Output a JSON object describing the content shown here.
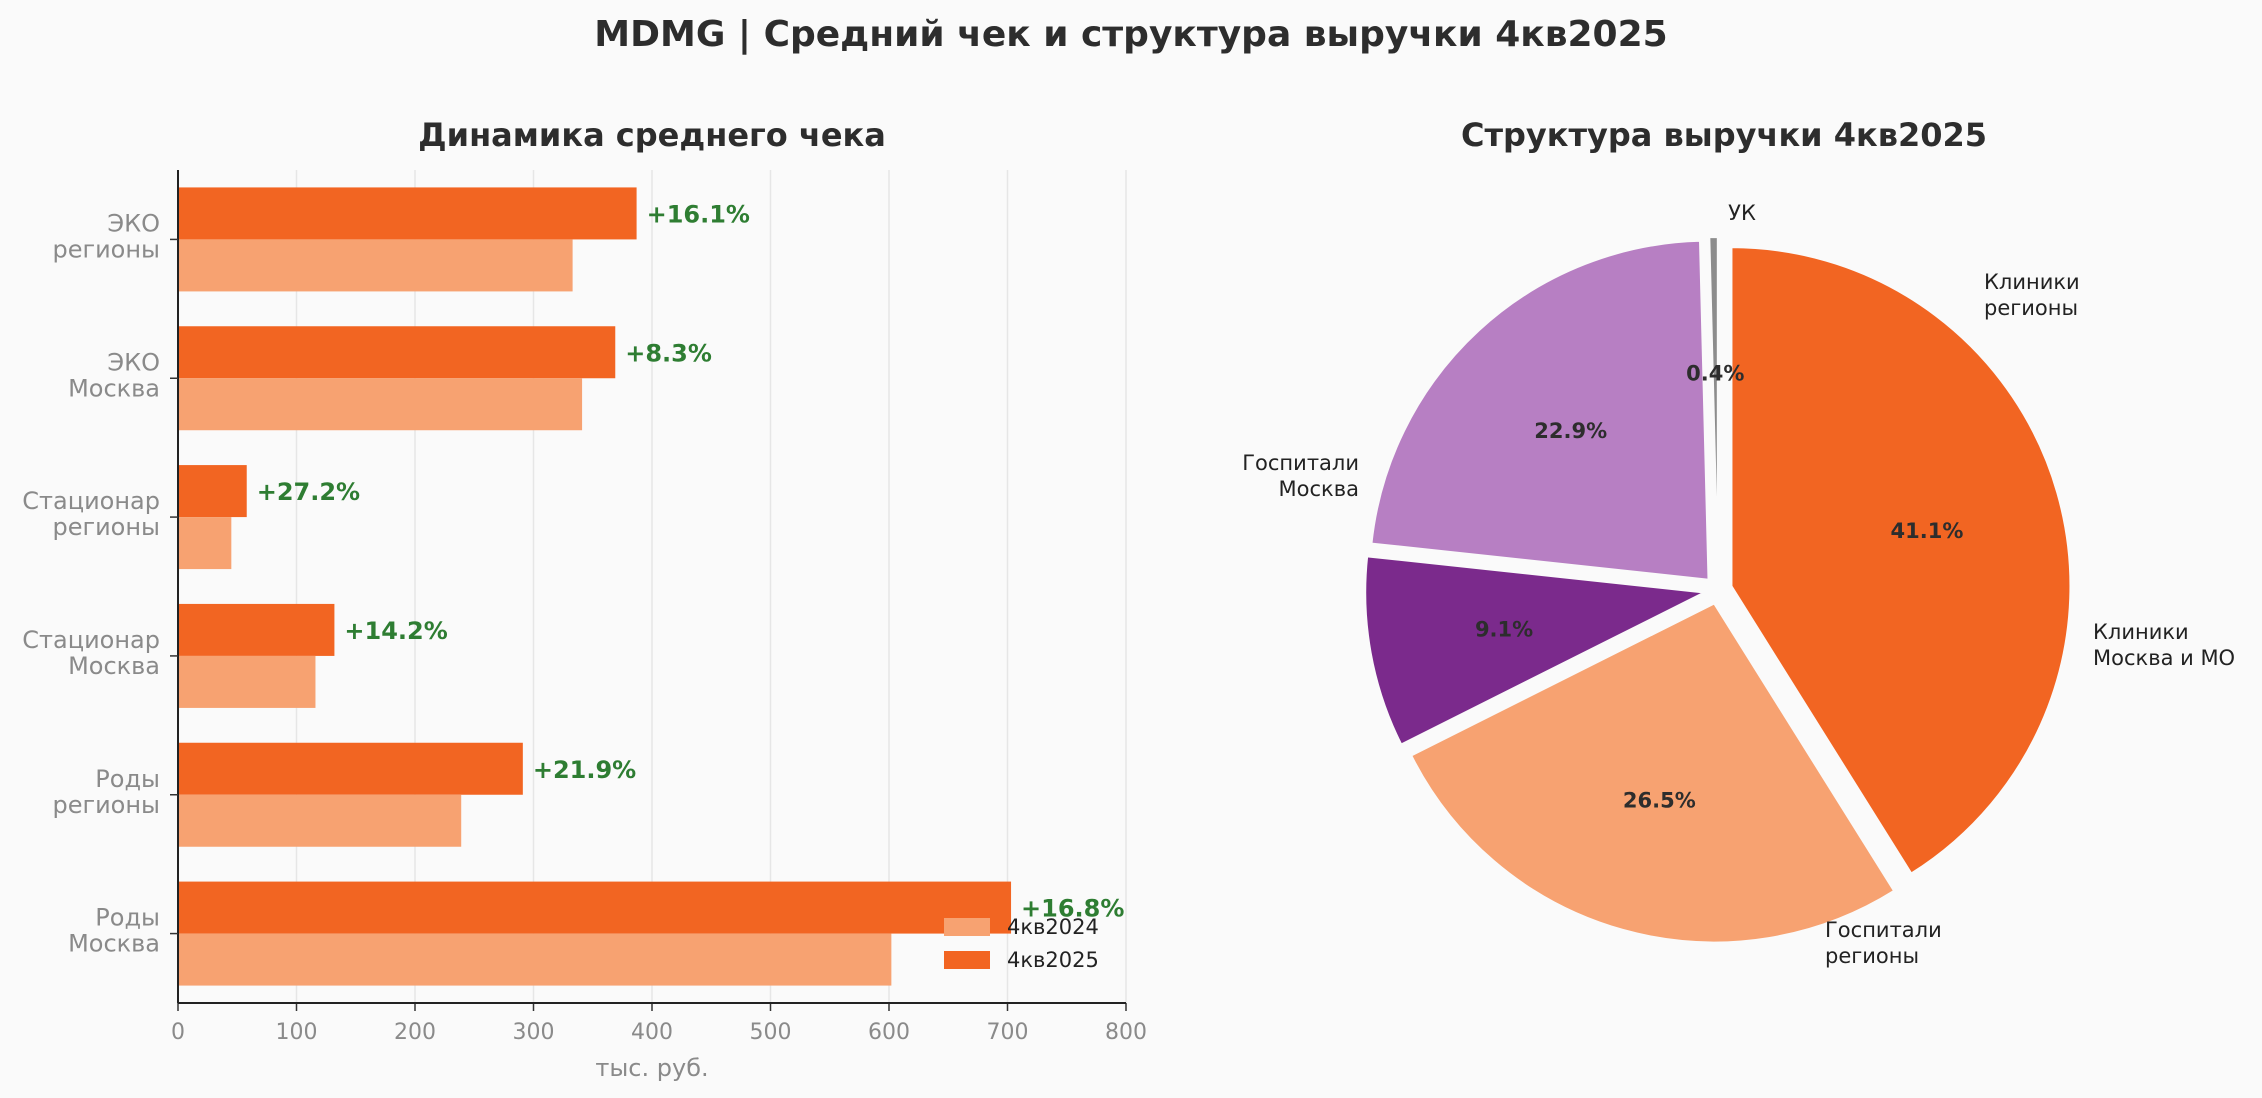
{
  "title": "MDMG | Средний чек и структура выручки 4кв2025",
  "chart_data": [
    {
      "type": "bar",
      "orientation": "horizontal",
      "title": "Динамика среднего чека",
      "xlabel": "тыс. руб.",
      "xlim": [
        0,
        800
      ],
      "xticks": [
        0,
        100,
        200,
        300,
        400,
        500,
        600,
        700,
        800
      ],
      "grid": true,
      "legend_position": "bottom-right",
      "categories": [
        [
          "ЭКО",
          "регионы"
        ],
        [
          "ЭКО",
          "Москва"
        ],
        [
          "Стационар",
          "регионы"
        ],
        [
          "Стационар",
          "Москва"
        ],
        [
          "Роды",
          "регионы"
        ],
        [
          "Роды",
          "Москва"
        ]
      ],
      "series": [
        {
          "name": "4кв2024",
          "color": "#f7a271",
          "values": [
            333,
            341,
            45,
            116,
            239,
            602
          ]
        },
        {
          "name": "4кв2025",
          "color": "#f26522",
          "values": [
            387,
            369,
            58,
            132,
            291,
            703
          ]
        }
      ],
      "changes": [
        "+16.1%",
        "+8.3%",
        "+27.2%",
        "+14.2%",
        "+21.9%",
        "+16.8%"
      ],
      "change_color": "#2e7d32"
    },
    {
      "type": "pie",
      "title": "Структура выручки 4кв2025",
      "slices": [
        {
          "label": [
            "УК"
          ],
          "pct_label": "0.4%",
          "value": 0.4,
          "color": "#8c8c8c"
        },
        {
          "label": [
            "Клиники",
            "регионы"
          ],
          "pct_label": "22.9%",
          "value": 22.9,
          "color": "#b77fc3"
        },
        {
          "label": [
            "Клиники",
            "Москва и МО"
          ],
          "pct_label": "9.1%",
          "value": 9.1,
          "color": "#7b2a8c"
        },
        {
          "label": [
            "Госпитали",
            "регионы"
          ],
          "pct_label": "26.5%",
          "value": 26.5,
          "color": "#f7a271"
        },
        {
          "label": [
            "Госпитали",
            "Москва"
          ],
          "pct_label": "41.1%",
          "value": 41.1,
          "color": "#f26522"
        }
      ]
    }
  ]
}
